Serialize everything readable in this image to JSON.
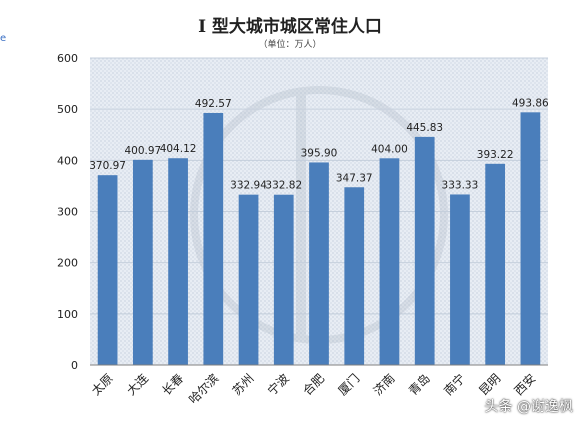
{
  "page_fragment": "e",
  "watermark": "头条 @谢逸枫",
  "colors": {
    "bar": "#4a7ebb",
    "plot_bg": "#dbe3ee",
    "grid": "#c5cfdc",
    "axis": "#7f7f7f",
    "text": "#222222"
  },
  "chart_data": {
    "type": "bar",
    "title": "I 型大城市城区常住人口",
    "subtitle": "（单位：万人）",
    "xlabel": "",
    "ylabel": "",
    "ylim": [
      0,
      600
    ],
    "yticks": [
      0,
      100,
      200,
      300,
      400,
      500,
      600
    ],
    "grid": true,
    "legend": "none",
    "categories": [
      "太原",
      "大连",
      "长春",
      "哈尔滨",
      "苏州",
      "宁波",
      "合肥",
      "厦门",
      "济南",
      "青岛",
      "南宁",
      "昆明",
      "西安"
    ],
    "values": [
      370.97,
      400.97,
      404.12,
      492.57,
      332.94,
      332.82,
      395.9,
      347.37,
      404.0,
      445.83,
      333.33,
      393.22,
      493.86
    ],
    "value_labels": [
      "370.97",
      "400.97",
      "404.12",
      "492.57",
      "332.94",
      "332.82",
      "395.90",
      "347.37",
      "404.00",
      "445.83",
      "333.33",
      "393.22",
      "493.86"
    ]
  }
}
